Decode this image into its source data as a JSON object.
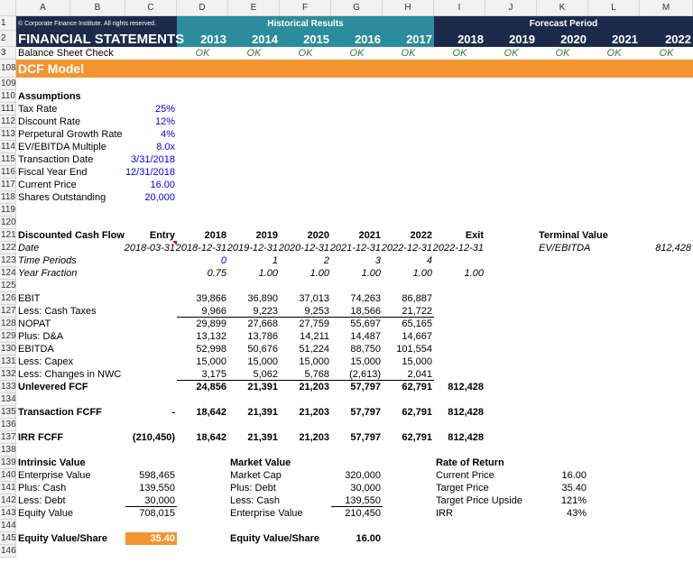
{
  "sheet": {
    "columns": [
      "A",
      "B",
      "C",
      "D",
      "E",
      "F",
      "G",
      "H",
      "I",
      "J",
      "K",
      "L",
      "M"
    ],
    "rows": [
      {
        "num": 1,
        "cells": {
          "A": "© Corporate Finance Institute. All rights reserved.",
          "D": "Historical Results",
          "I": "Forecast Period"
        }
      },
      {
        "num": 2,
        "cells": {
          "A": "FINANCIAL STATEMENTS",
          "D": "2013",
          "E": "2014",
          "F": "2015",
          "G": "2016",
          "H": "2017",
          "I": "2018",
          "J": "2019",
          "K": "2020",
          "L": "2021",
          "M": "2022"
        }
      },
      {
        "num": 3,
        "cells": {
          "A": "Balance Sheet Check",
          "D": "OK",
          "E": "OK",
          "F": "OK",
          "G": "OK",
          "H": "OK",
          "I": "OK",
          "J": "OK",
          "K": "OK",
          "L": "OK",
          "M": "OK"
        }
      },
      {
        "num": 108,
        "cells": {
          "A": "DCF Model"
        }
      },
      {
        "num": 109
      },
      {
        "num": 110,
        "cells": {
          "A": "Assumptions"
        }
      },
      {
        "num": 111,
        "cells": {
          "A": "Tax Rate",
          "C": "25%"
        }
      },
      {
        "num": 112,
        "cells": {
          "A": "Discount Rate",
          "C": "12%"
        }
      },
      {
        "num": 113,
        "cells": {
          "A": "Perpetural Growth Rate",
          "C": "4%"
        }
      },
      {
        "num": 114,
        "cells": {
          "A": "EV/EBITDA Multiple",
          "C": "8.0x"
        }
      },
      {
        "num": 115,
        "cells": {
          "A": "Transaction Date",
          "C": "3/31/2018"
        }
      },
      {
        "num": 116,
        "cells": {
          "A": "Fiscal Year End",
          "C": "12/31/2018"
        }
      },
      {
        "num": 117,
        "cells": {
          "A": "Current Price",
          "C": "16.00"
        }
      },
      {
        "num": 118,
        "cells": {
          "A": "Shares Outstanding",
          "C": "20,000"
        }
      },
      {
        "num": 119
      },
      {
        "num": 120
      },
      {
        "num": 121,
        "cells": {
          "A": "Discounted Cash Flow",
          "C": "Entry",
          "D": "2018",
          "E": "2019",
          "F": "2020",
          "G": "2021",
          "H": "2022",
          "I": "Exit",
          "K": "Terminal Value"
        }
      },
      {
        "num": 122,
        "cells": {
          "A": "Date",
          "C": "2018-03-31",
          "D": "2018-12-31",
          "E": "2019-12-31",
          "F": "2020-12-31",
          "G": "2021-12-31",
          "H": "2022-12-31",
          "I": "2022-12-31",
          "K": "EV/EBITDA",
          "M": "812,428"
        }
      },
      {
        "num": 123,
        "cells": {
          "A": "Time Periods",
          "D": "0",
          "E": "1",
          "F": "2",
          "G": "3",
          "H": "4"
        }
      },
      {
        "num": 124,
        "cells": {
          "A": "Year Fraction",
          "D": "0.75",
          "E": "1.00",
          "F": "1.00",
          "G": "1.00",
          "H": "1.00",
          "I": "1.00"
        }
      },
      {
        "num": 125
      },
      {
        "num": 126,
        "cells": {
          "A": "EBIT",
          "D": "39,866",
          "E": "36,890",
          "F": "37,013",
          "G": "74,263",
          "H": "86,887"
        }
      },
      {
        "num": 127,
        "cells": {
          "A": "Less: Cash Taxes",
          "D": "9,966",
          "E": "9,223",
          "F": "9,253",
          "G": "18,566",
          "H": "21,722"
        }
      },
      {
        "num": 128,
        "cells": {
          "A": "NOPAT",
          "D": "29,899",
          "E": "27,668",
          "F": "27,759",
          "G": "55,697",
          "H": "65,165"
        }
      },
      {
        "num": 129,
        "cells": {
          "A": "Plus: D&A",
          "D": "13,132",
          "E": "13,786",
          "F": "14,211",
          "G": "14,487",
          "H": "14,667"
        }
      },
      {
        "num": 130,
        "cells": {
          "A": "EBITDA",
          "D": "52,998",
          "E": "50,676",
          "F": "51,224",
          "G": "88,750",
          "H": "101,554"
        }
      },
      {
        "num": 131,
        "cells": {
          "A": "Less: Capex",
          "D": "15,000",
          "E": "15,000",
          "F": "15,000",
          "G": "15,000",
          "H": "15,000"
        }
      },
      {
        "num": 132,
        "cells": {
          "A": "Less: Changes in NWC",
          "D": "3,175",
          "E": "5,062",
          "F": "5,768",
          "G": "(2,613)",
          "H": "2,041"
        }
      },
      {
        "num": 133,
        "cells": {
          "A": "Unlevered FCF",
          "D": "24,856",
          "E": "21,391",
          "F": "21,203",
          "G": "57,797",
          "H": "62,791",
          "I": "812,428"
        }
      },
      {
        "num": 134
      },
      {
        "num": 135,
        "cells": {
          "A": "Transaction FCFF",
          "C": "-",
          "D": "18,642",
          "E": "21,391",
          "F": "21,203",
          "G": "57,797",
          "H": "62,791",
          "I": "812,428"
        }
      },
      {
        "num": 136
      },
      {
        "num": 137,
        "cells": {
          "A": "IRR FCFF",
          "C": "(210,450)",
          "D": "18,642",
          "E": "21,391",
          "F": "21,203",
          "G": "57,797",
          "H": "62,791",
          "I": "812,428"
        }
      },
      {
        "num": 138
      },
      {
        "num": 139,
        "cells": {
          "A": "Intrinsic Value",
          "E": "Market Value",
          "I": "Rate of Return"
        }
      },
      {
        "num": 140,
        "cells": {
          "A": "Enterprise Value",
          "C": "598,465",
          "E": "Market Cap",
          "G": "320,000",
          "I": "Current Price",
          "K": "16.00"
        }
      },
      {
        "num": 141,
        "cells": {
          "A": "Plus: Cash",
          "C": "139,550",
          "E": "Plus: Debt",
          "G": "30,000",
          "I": "Target Price",
          "K": "35.40"
        }
      },
      {
        "num": 142,
        "cells": {
          "A": "Less: Debt",
          "C": "30,000",
          "E": "Less: Cash",
          "G": "139,550",
          "I": "Target Price Upside",
          "K": "121%"
        }
      },
      {
        "num": 143,
        "cells": {
          "A": "Equity Value",
          "C": "708,015",
          "E": "Enterprise Value",
          "G": "210,450",
          "I": "IRR",
          "K": "43%"
        }
      },
      {
        "num": 144
      },
      {
        "num": 145,
        "cells": {
          "A": "Equity Value/Share",
          "C": "35.40",
          "E": "Equity Value/Share",
          "G": "16.00"
        }
      },
      {
        "num": 146
      }
    ]
  }
}
